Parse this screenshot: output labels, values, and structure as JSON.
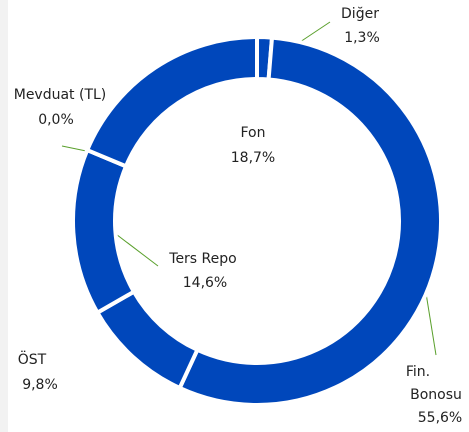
{
  "chart_data": {
    "type": "donut",
    "categories": [
      "Diğer",
      "Fin. Bonosu",
      "ÖST",
      "Ters Repo",
      "Mevduat (TL)",
      "Fon"
    ],
    "values": [
      1.3,
      55.6,
      9.8,
      14.6,
      0.0,
      18.7
    ],
    "value_labels": [
      "1,3%",
      "55,6%",
      "9,8%",
      "14,6%",
      "0,0%",
      "18,7%"
    ],
    "color": "#0047bb"
  }
}
